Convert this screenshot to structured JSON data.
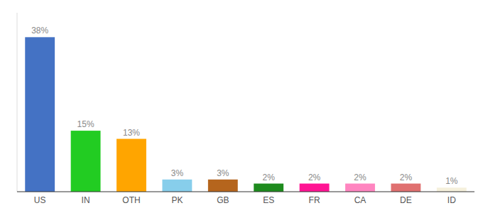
{
  "chart_data": {
    "type": "bar",
    "categories": [
      "US",
      "IN",
      "OTH",
      "PK",
      "GB",
      "ES",
      "FR",
      "CA",
      "DE",
      "ID"
    ],
    "values": [
      38,
      15,
      13,
      3,
      3,
      2,
      2,
      2,
      2,
      1
    ],
    "value_labels": [
      "38%",
      "15%",
      "13%",
      "3%",
      "3%",
      "2%",
      "2%",
      "2%",
      "2%",
      "1%"
    ],
    "colors": [
      "#4472C4",
      "#22CC22",
      "#FFA500",
      "#87CEEB",
      "#B5651D",
      "#1E8B1E",
      "#FF1493",
      "#FF85C0",
      "#E07070",
      "#F5F0DC"
    ],
    "ylim": [
      0,
      44
    ],
    "data_labels": true,
    "tick_labels": "x",
    "grid": false
  }
}
